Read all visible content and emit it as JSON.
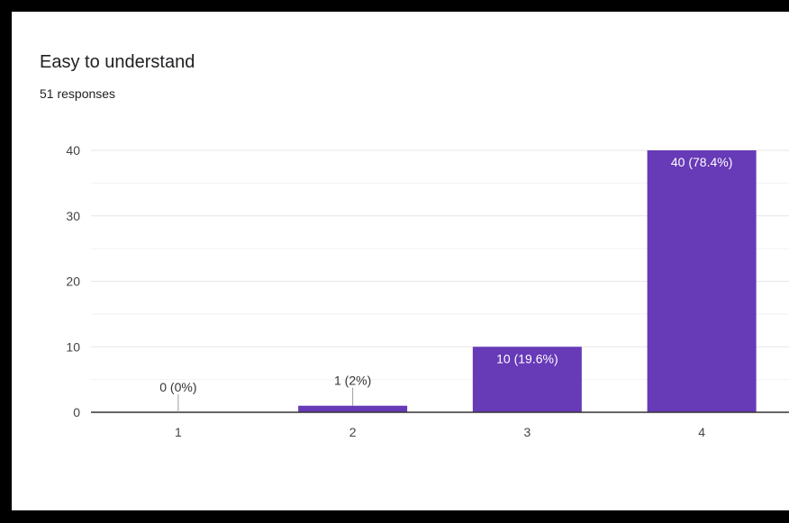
{
  "card": {
    "title": "Easy to understand",
    "subtitle": "51 responses"
  },
  "colors": {
    "bar": "#673ab7",
    "background": "#ffffff",
    "frame": "#000000",
    "gridline": "#e6e6e6",
    "baseline": "#333333"
  },
  "chart_data": {
    "type": "bar",
    "title": "Easy to understand",
    "subtitle": "51 responses",
    "categories": [
      "1",
      "2",
      "3",
      "4"
    ],
    "values": [
      0,
      1,
      10,
      40
    ],
    "data_labels": [
      "0 (0%)",
      "1 (2%)",
      "10 (19.6%)",
      "40 (78.4%)"
    ],
    "ylim": [
      0,
      40
    ],
    "yticks": [
      "0",
      "10",
      "20",
      "30",
      "40"
    ],
    "grid": true,
    "legend": "none"
  }
}
